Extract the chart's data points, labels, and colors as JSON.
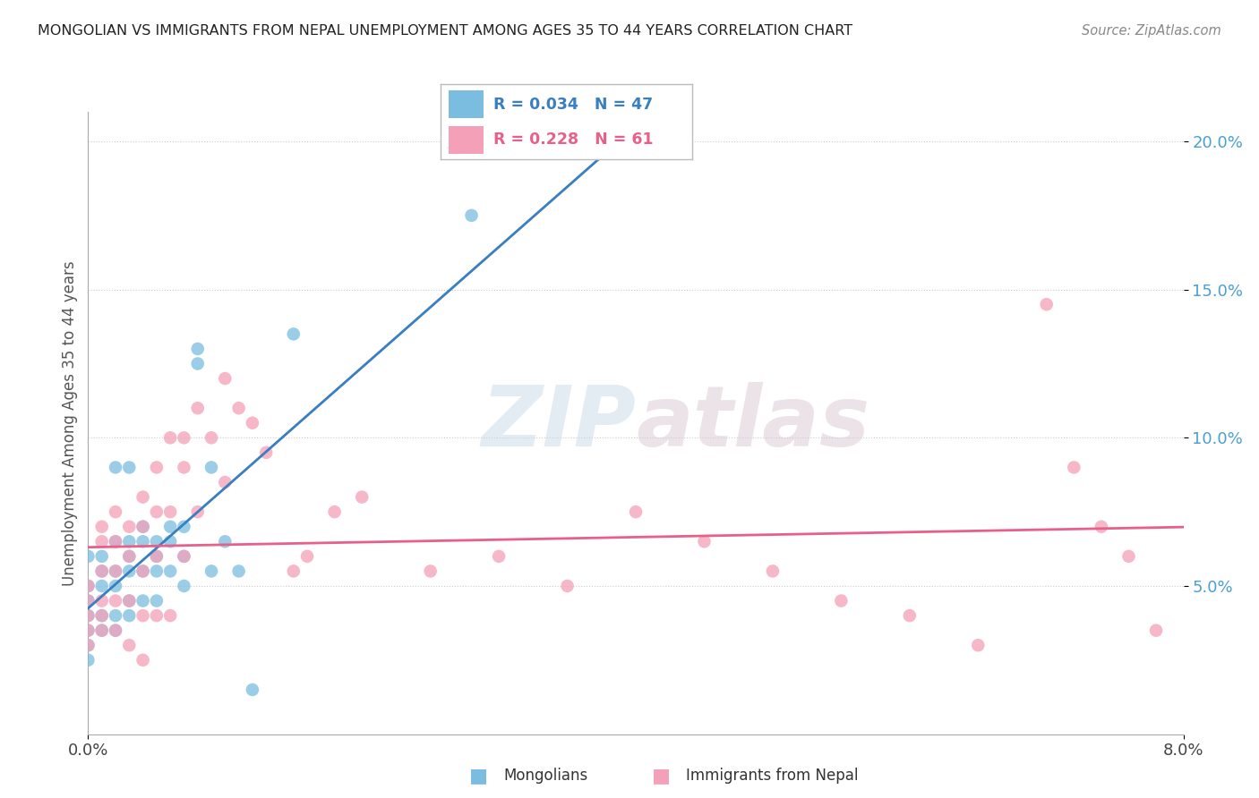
{
  "title": "MONGOLIAN VS IMMIGRANTS FROM NEPAL UNEMPLOYMENT AMONG AGES 35 TO 44 YEARS CORRELATION CHART",
  "source": "Source: ZipAtlas.com",
  "ylabel": "Unemployment Among Ages 35 to 44 years",
  "xmin": 0.0,
  "xmax": 0.08,
  "ymin": 0.0,
  "ymax": 0.21,
  "color_mongolian": "#7bbde0",
  "color_nepal": "#f4a0b8",
  "trendline_mongolian": "#3a7fc1",
  "trendline_nepal": "#e8608a",
  "watermark_color": "#d0dff0",
  "mongolian_x": [
    0.0,
    0.0,
    0.0,
    0.0,
    0.0,
    0.0,
    0.0,
    0.001,
    0.001,
    0.001,
    0.001,
    0.001,
    0.002,
    0.002,
    0.002,
    0.002,
    0.002,
    0.003,
    0.003,
    0.003,
    0.003,
    0.003,
    0.004,
    0.004,
    0.004,
    0.004,
    0.005,
    0.005,
    0.005,
    0.005,
    0.006,
    0.006,
    0.006,
    0.007,
    0.007,
    0.007,
    0.008,
    0.008,
    0.009,
    0.009,
    0.01,
    0.011,
    0.012,
    0.015,
    0.028,
    0.002,
    0.003
  ],
  "mongolian_y": [
    0.05,
    0.06,
    0.045,
    0.04,
    0.035,
    0.03,
    0.025,
    0.06,
    0.055,
    0.05,
    0.04,
    0.035,
    0.065,
    0.055,
    0.05,
    0.04,
    0.035,
    0.065,
    0.06,
    0.055,
    0.045,
    0.04,
    0.07,
    0.065,
    0.055,
    0.045,
    0.065,
    0.06,
    0.055,
    0.045,
    0.07,
    0.065,
    0.055,
    0.07,
    0.06,
    0.05,
    0.13,
    0.125,
    0.09,
    0.055,
    0.065,
    0.055,
    0.015,
    0.135,
    0.175,
    0.09,
    0.09
  ],
  "nepal_x": [
    0.0,
    0.0,
    0.0,
    0.0,
    0.0,
    0.001,
    0.001,
    0.001,
    0.001,
    0.001,
    0.001,
    0.002,
    0.002,
    0.002,
    0.002,
    0.002,
    0.003,
    0.003,
    0.003,
    0.003,
    0.004,
    0.004,
    0.004,
    0.004,
    0.004,
    0.005,
    0.005,
    0.005,
    0.005,
    0.006,
    0.006,
    0.006,
    0.007,
    0.007,
    0.007,
    0.008,
    0.008,
    0.009,
    0.01,
    0.01,
    0.011,
    0.012,
    0.013,
    0.015,
    0.016,
    0.018,
    0.02,
    0.025,
    0.03,
    0.035,
    0.04,
    0.045,
    0.05,
    0.055,
    0.06,
    0.065,
    0.07,
    0.072,
    0.074,
    0.076,
    0.078
  ],
  "nepal_y": [
    0.05,
    0.045,
    0.04,
    0.035,
    0.03,
    0.07,
    0.065,
    0.055,
    0.045,
    0.04,
    0.035,
    0.075,
    0.065,
    0.055,
    0.045,
    0.035,
    0.07,
    0.06,
    0.045,
    0.03,
    0.08,
    0.07,
    0.055,
    0.04,
    0.025,
    0.09,
    0.075,
    0.06,
    0.04,
    0.1,
    0.075,
    0.04,
    0.1,
    0.09,
    0.06,
    0.11,
    0.075,
    0.1,
    0.12,
    0.085,
    0.11,
    0.105,
    0.095,
    0.055,
    0.06,
    0.075,
    0.08,
    0.055,
    0.06,
    0.05,
    0.075,
    0.065,
    0.055,
    0.045,
    0.04,
    0.03,
    0.145,
    0.09,
    0.07,
    0.06,
    0.035
  ]
}
